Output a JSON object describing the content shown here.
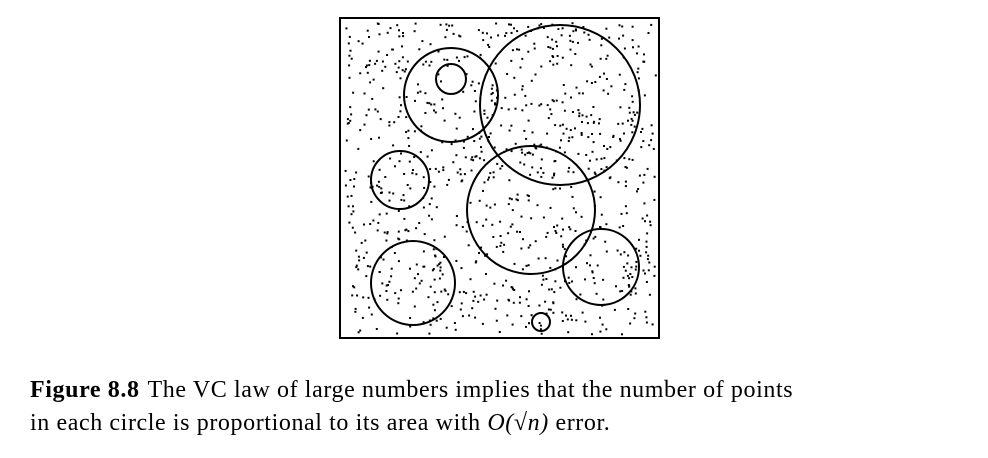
{
  "figure": {
    "label": "Figure 8.8",
    "caption_line1": "The VC law of large numbers implies that the number of points",
    "caption_line2": "in each circle is proportional to its area with",
    "caption_math": "O(√n)",
    "caption_tail": "error."
  }
}
